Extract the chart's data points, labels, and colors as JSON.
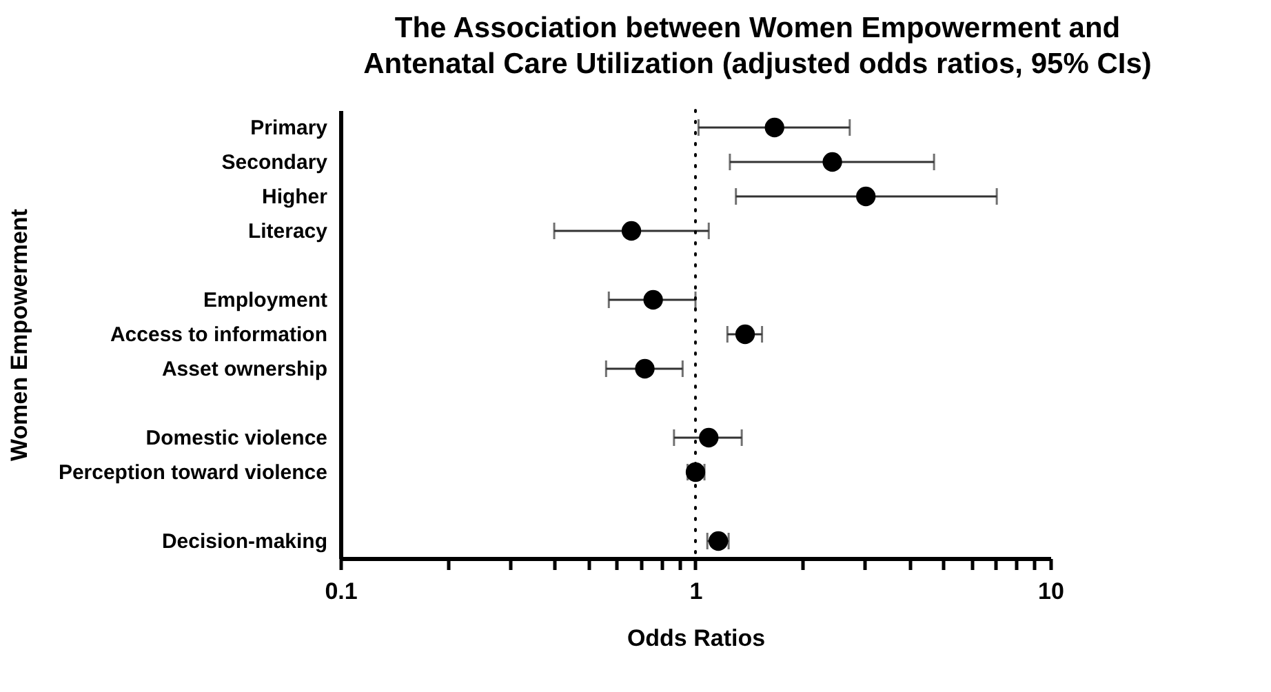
{
  "chart_data": {
    "type": "scatter",
    "title": "The Association between Women Empowerment and Antenatal Care Utilization (adjusted odds ratios, 95% CIs)",
    "xlabel": "Odds Ratios",
    "ylabel": "Women Empowerment",
    "orientation": "horizontal",
    "categories": [
      "Primary",
      "Secondary",
      "Higher",
      "Literacy",
      null,
      "Employment",
      "Access to information",
      "Asset ownership",
      null,
      "Domestic violence",
      "Perception toward violence",
      null,
      "Decision-making"
    ],
    "series": [
      {
        "color": "#000000",
        "values": [
          1.67,
          2.43,
          3.02,
          0.66,
          null,
          0.76,
          1.38,
          0.72,
          null,
          1.09,
          1.0,
          null,
          1.16
        ],
        "errors": [
          [
            1.02,
            2.72
          ],
          [
            1.25,
            4.7
          ],
          [
            1.3,
            7.06
          ],
          [
            0.4,
            1.09
          ],
          null,
          [
            0.57,
            1.0
          ],
          [
            1.23,
            1.54
          ],
          [
            0.56,
            0.92
          ],
          null,
          [
            0.87,
            1.35
          ],
          [
            0.95,
            1.06
          ],
          null,
          [
            1.08,
            1.24
          ]
        ]
      }
    ],
    "log": "x",
    "xlim": [
      0.1,
      10
    ],
    "xticks": [
      0.1,
      {
        "value": 0.2,
        "label": null
      },
      {
        "value": 0.3,
        "label": null
      },
      {
        "value": 0.4,
        "label": null
      },
      {
        "value": 0.5,
        "label": null
      },
      {
        "value": 0.6,
        "label": null
      },
      {
        "value": 0.7,
        "label": null
      },
      {
        "value": 0.8,
        "label": null
      },
      {
        "value": 0.9,
        "label": null
      },
      1,
      {
        "value": 2,
        "label": null
      },
      {
        "value": 3,
        "label": null
      },
      {
        "value": 4,
        "label": null
      },
      {
        "value": 5,
        "label": null
      },
      {
        "value": 6,
        "label": null
      },
      {
        "value": 7,
        "label": null
      },
      {
        "value": 8,
        "label": null
      },
      {
        "value": 9,
        "label": null
      },
      10
    ],
    "ref_lines": [
      {
        "axis": "x",
        "value": 1,
        "line_style": "dotted",
        "color": "#000000"
      }
    ],
    "grid": false,
    "legend": false,
    "marker": "circle"
  }
}
